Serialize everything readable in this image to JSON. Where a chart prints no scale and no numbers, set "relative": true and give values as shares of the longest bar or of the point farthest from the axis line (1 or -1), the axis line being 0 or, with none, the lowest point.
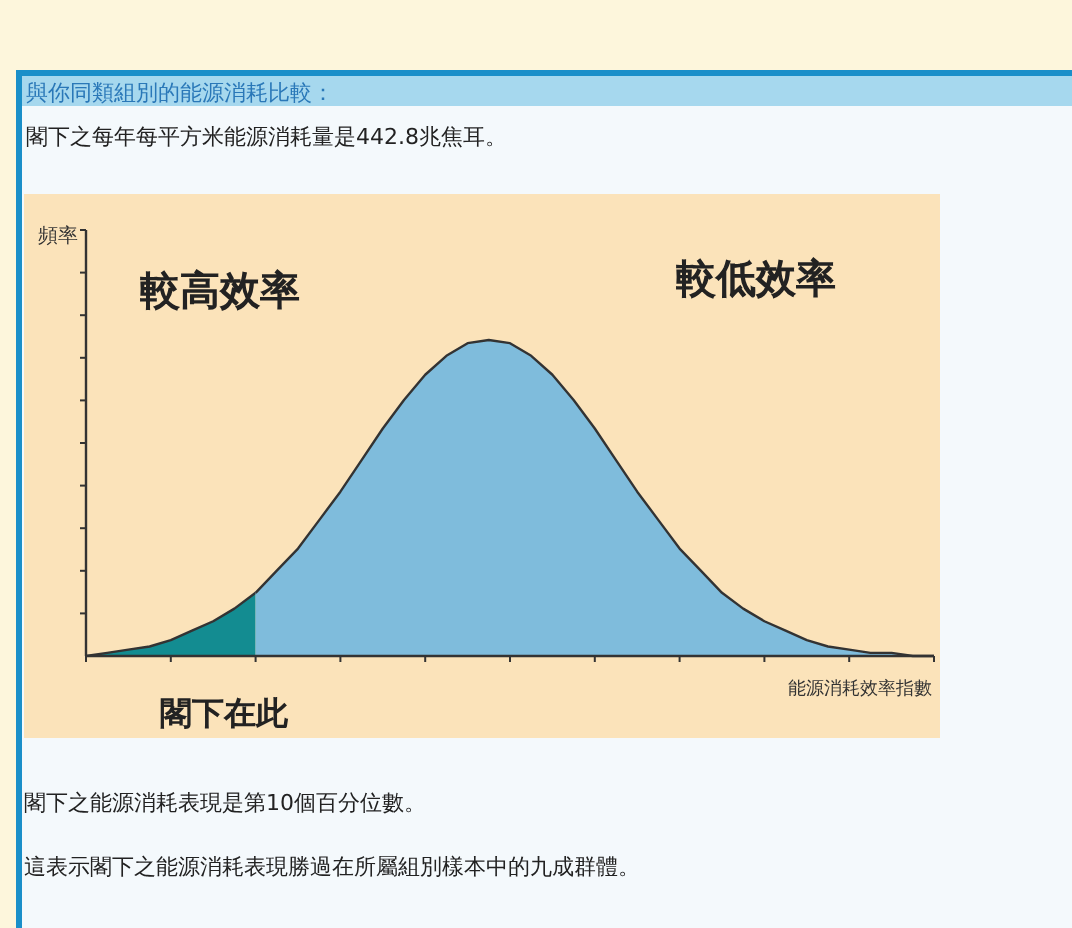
{
  "chart_data": {
    "type": "area",
    "relative": true,
    "title": "與你同類組別的能源消耗比較：",
    "subtitle": "閣下之每年每平方米能源消耗量是442.8兆焦耳。",
    "ylabel": "頻率",
    "xlabel": "能源消耗效率指數",
    "categories": [
      null,
      null,
      null,
      null,
      null,
      null,
      null,
      null,
      null,
      null,
      null,
      null,
      null,
      null,
      null,
      null,
      null,
      null,
      null,
      null,
      null,
      null,
      null,
      null,
      null,
      null,
      null,
      null,
      null,
      null,
      null,
      null,
      null,
      null,
      null,
      null,
      null,
      null,
      null,
      null,
      null
    ],
    "series": [
      {
        "color": "#138c91",
        "values": [
          0.0,
          0.01,
          0.02,
          0.03,
          0.05,
          0.08,
          0.11,
          0.15,
          0.2,
          null,
          null,
          null,
          null,
          null,
          null,
          null,
          null,
          null,
          null,
          null,
          null,
          null,
          null,
          null,
          null,
          null,
          null,
          null,
          null,
          null,
          null,
          null,
          null,
          null,
          null,
          null,
          null,
          null,
          null,
          null,
          null
        ]
      },
      {
        "color": "#7fbcdc",
        "values": [
          null,
          null,
          null,
          null,
          null,
          null,
          null,
          null,
          0.2,
          0.27,
          0.34,
          0.43,
          0.52,
          0.62,
          0.72,
          0.81,
          0.89,
          0.95,
          0.99,
          1.0,
          0.99,
          0.95,
          0.89,
          0.81,
          0.72,
          0.62,
          0.52,
          0.43,
          0.34,
          0.27,
          0.2,
          0.15,
          0.11,
          0.08,
          0.05,
          0.03,
          0.02,
          0.01,
          0.01,
          0.0,
          0.0
        ]
      }
    ],
    "annotations": [
      "較高效率",
      "較低效率",
      "閣下在此",
      "閣下之能源消耗表現是第10個百分位數。",
      "這表示閣下之能源消耗表現勝過在所屬組別樣本中的九成群體。"
    ]
  }
}
